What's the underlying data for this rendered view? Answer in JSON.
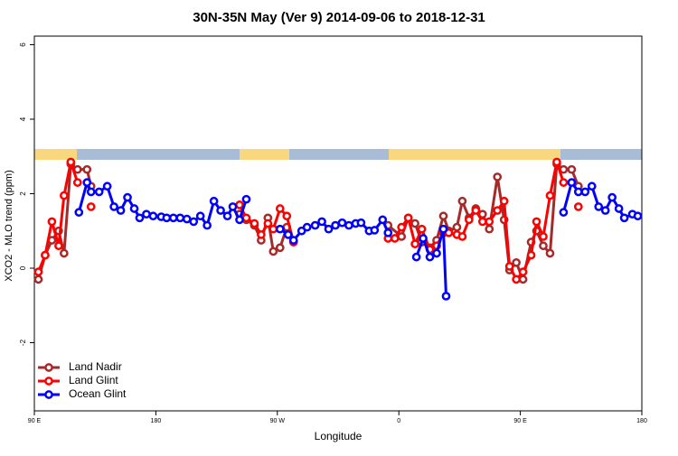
{
  "chart_data": {
    "type": "line",
    "title": "30N-35N May (Ver 9)   2014-09-06 to 2018-12-31",
    "x_label": "Longitude",
    "y_label": "XCO2 - MLO trend (ppm)",
    "xlim": [
      90,
      540
    ],
    "xticks": [
      {
        "value": 90,
        "label": "90 E"
      },
      180,
      {
        "value": 270,
        "label": "90 W"
      },
      {
        "value": 360,
        "label": "0"
      },
      {
        "value": 450,
        "label": "90 E"
      },
      180
    ],
    "ylim": [
      -3.83,
      6.23
    ],
    "yticks": [
      -2,
      0,
      2,
      4,
      6
    ],
    "legend": "bottom-left",
    "series": [
      {
        "name": "Land Nadir",
        "color": "#a52a2a",
        "x": [
          93,
          98,
          103,
          108,
          112,
          117,
          122,
          129,
          132,
          190,
          242,
          247,
          253,
          258,
          263,
          267,
          272,
          277,
          320,
          352,
          362,
          367,
          372,
          377,
          383,
          388,
          393,
          397,
          403,
          407,
          412,
          417,
          422,
          427,
          433,
          438,
          442,
          447,
          452,
          458,
          462,
          467,
          472,
          477,
          482,
          488,
          493
        ],
        "values": [
          -0.3,
          0.35,
          0.75,
          1.0,
          0.4,
          2.8,
          2.65,
          2.65,
          2.2,
          null,
          1.45,
          1.3,
          1.15,
          0.75,
          1.35,
          0.45,
          0.55,
          1.1,
          null,
          1.15,
          0.85,
          1.35,
          1.2,
          0.7,
          0.55,
          0.75,
          1.4,
          1.0,
          1.1,
          1.8,
          1.35,
          1.6,
          1.45,
          1.05,
          2.45,
          1.3,
          -0.05,
          0.15,
          -0.3,
          0.7,
          1.0,
          0.6,
          0.4,
          2.8,
          2.65,
          2.65,
          2.2
        ]
      },
      {
        "name": "Land Glint",
        "color": "#ff0000",
        "x": [
          93,
          98,
          103,
          108,
          112,
          117,
          122,
          127,
          132,
          190,
          242,
          247,
          253,
          258,
          263,
          267,
          272,
          277,
          282,
          320,
          352,
          357,
          362,
          367,
          372,
          377,
          383,
          388,
          393,
          397,
          403,
          407,
          412,
          417,
          422,
          427,
          433,
          438,
          442,
          447,
          452,
          458,
          462,
          467,
          472,
          477,
          482,
          488,
          493
        ],
        "values": [
          -0.1,
          0.35,
          1.25,
          0.6,
          1.95,
          2.85,
          2.3,
          null,
          1.65,
          null,
          1.7,
          1.35,
          1.2,
          0.9,
          1.2,
          1.05,
          1.6,
          1.4,
          0.7,
          null,
          0.8,
          0.8,
          1.1,
          1.35,
          0.65,
          1.05,
          0.5,
          0.6,
          0.95,
          0.95,
          0.9,
          0.85,
          1.3,
          1.55,
          1.25,
          1.25,
          1.55,
          1.8,
          0.05,
          -0.3,
          -0.1,
          0.35,
          1.25,
          0.85,
          1.95,
          2.85,
          2.3,
          null,
          1.65
        ]
      },
      {
        "name": "Ocean Glint",
        "color": "#0000ff",
        "x": [
          123,
          129,
          132,
          138,
          144,
          149,
          154,
          159,
          164,
          168,
          173,
          178,
          184,
          188,
          193,
          198,
          203,
          208,
          213,
          218,
          223,
          228,
          233,
          237,
          242,
          247,
          260,
          272,
          278,
          282,
          288,
          292,
          298,
          303,
          308,
          313,
          318,
          323,
          328,
          332,
          338,
          342,
          348,
          352,
          362,
          373,
          378,
          383,
          388,
          393,
          395,
          440,
          482,
          488,
          493,
          498,
          503,
          508,
          513,
          518,
          523,
          527,
          533,
          537
        ],
        "values": [
          1.5,
          2.3,
          2.05,
          2.05,
          2.2,
          1.65,
          1.55,
          1.9,
          1.6,
          1.35,
          1.45,
          1.4,
          1.38,
          1.35,
          1.35,
          1.35,
          1.32,
          1.25,
          1.4,
          1.15,
          1.8,
          1.55,
          1.4,
          1.65,
          1.3,
          1.85,
          null,
          1.05,
          0.9,
          0.75,
          1.0,
          1.1,
          1.15,
          1.25,
          1.05,
          1.15,
          1.22,
          1.15,
          1.2,
          1.22,
          1.0,
          1.02,
          1.3,
          0.95,
          null,
          0.3,
          0.8,
          0.3,
          0.4,
          1.05,
          -0.75,
          null,
          1.5,
          2.3,
          2.05,
          2.05,
          2.2,
          1.65,
          1.55,
          1.9,
          1.6,
          1.35,
          1.45,
          1.4
        ]
      }
    ]
  }
}
